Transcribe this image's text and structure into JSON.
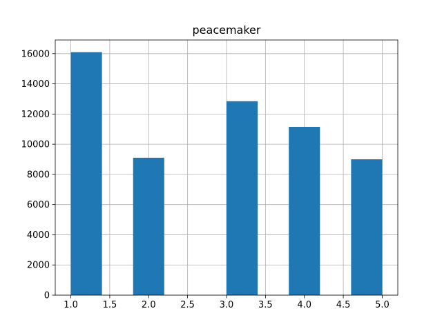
{
  "chart_data": {
    "type": "bar",
    "title": "peacemaker",
    "xlabel": "",
    "ylabel": "",
    "bins": [
      {
        "x0": 1.0,
        "x1": 1.4,
        "value": 16100
      },
      {
        "x0": 1.4,
        "x1": 1.8,
        "value": 0
      },
      {
        "x0": 1.8,
        "x1": 2.2,
        "value": 9100
      },
      {
        "x0": 2.2,
        "x1": 2.6,
        "value": 0
      },
      {
        "x0": 2.6,
        "x1": 3.0,
        "value": 0
      },
      {
        "x0": 3.0,
        "x1": 3.4,
        "value": 12850
      },
      {
        "x0": 3.4,
        "x1": 3.8,
        "value": 0
      },
      {
        "x0": 3.8,
        "x1": 4.2,
        "value": 11150
      },
      {
        "x0": 4.2,
        "x1": 4.6,
        "value": 0
      },
      {
        "x0": 4.6,
        "x1": 5.0,
        "value": 9000
      }
    ],
    "xlim": [
      0.8,
      5.2
    ],
    "ylim": [
      0,
      16905
    ],
    "xticks": [
      1.0,
      1.5,
      2.0,
      2.5,
      3.0,
      3.5,
      4.0,
      4.5,
      5.0
    ],
    "xtick_labels": [
      "1.0",
      "1.5",
      "2.0",
      "2.5",
      "3.0",
      "3.5",
      "4.0",
      "4.5",
      "5.0"
    ],
    "yticks": [
      0,
      2000,
      4000,
      6000,
      8000,
      10000,
      12000,
      14000,
      16000
    ],
    "ytick_labels": [
      "0",
      "2000",
      "4000",
      "6000",
      "8000",
      "10000",
      "12000",
      "14000",
      "16000"
    ],
    "grid": true,
    "bar_color": "#1f77b4",
    "grid_color": "#b0b0b0"
  }
}
